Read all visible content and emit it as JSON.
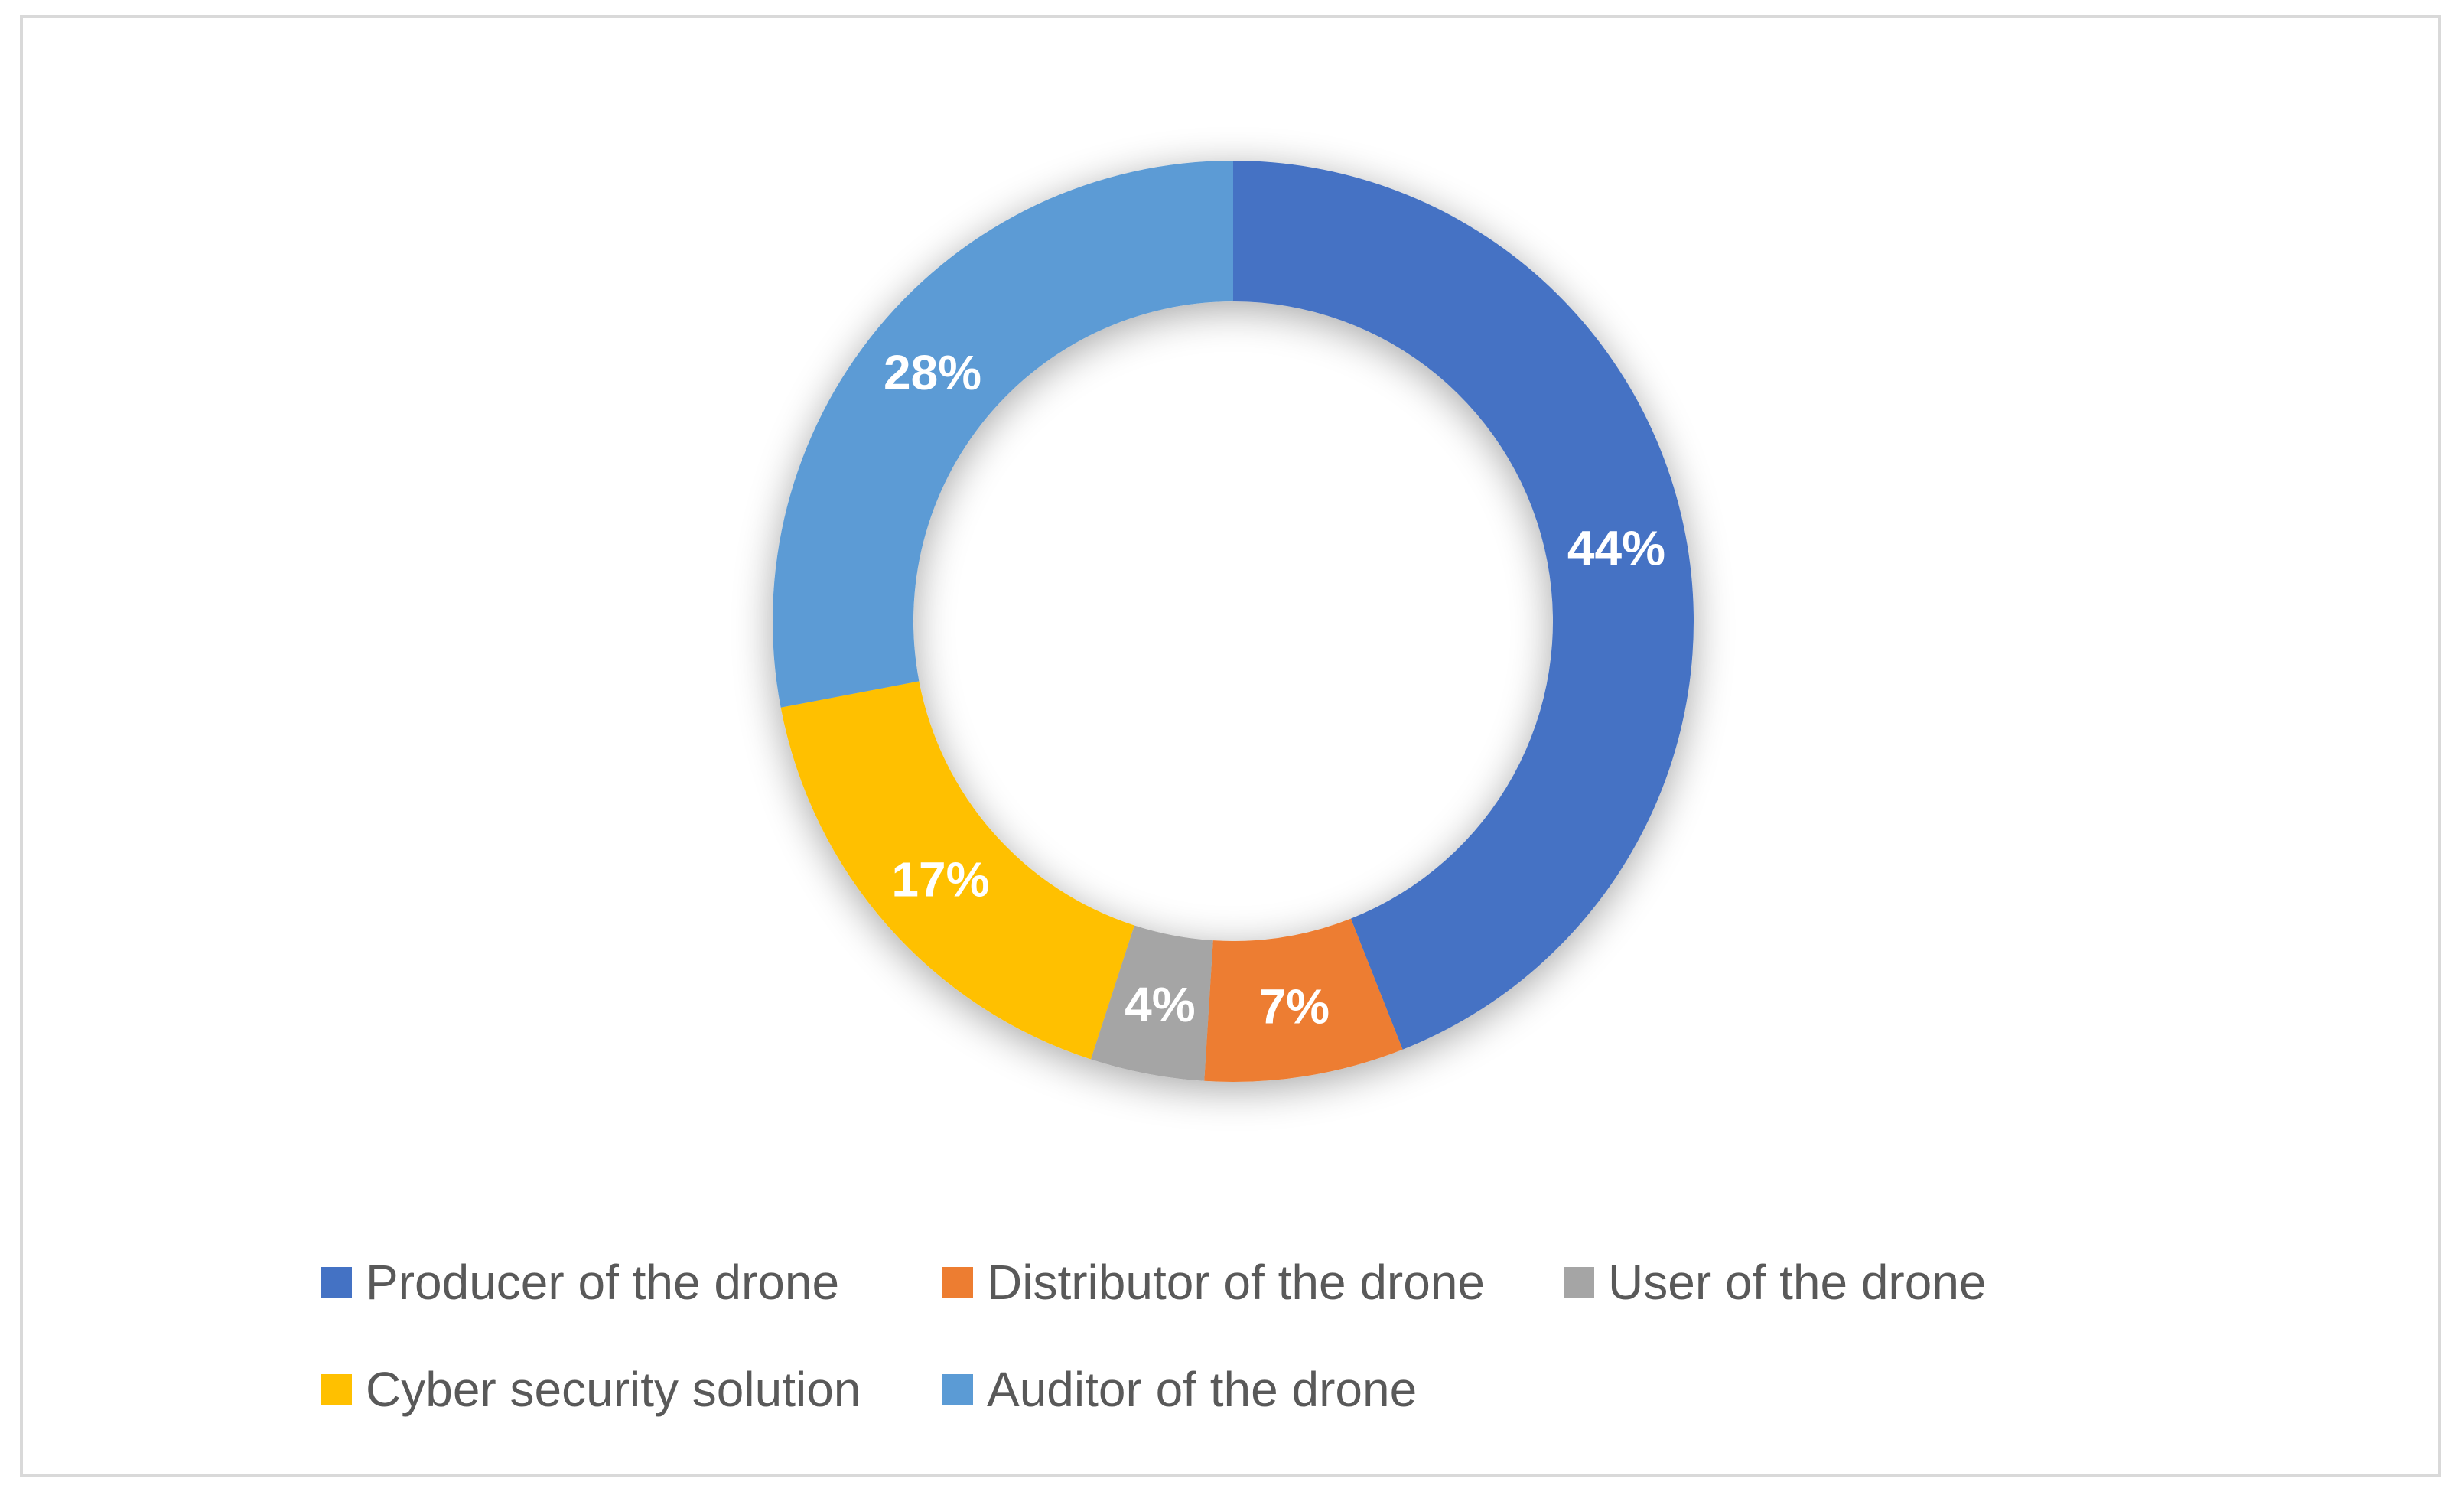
{
  "chart_data": {
    "type": "pie",
    "variant": "donut",
    "title": "",
    "categories": [
      "Producer of the drone",
      "Distributor of the drone",
      "User of the drone",
      "Cyber security solution",
      "Auditor of the drone"
    ],
    "values": [
      44,
      7,
      4,
      17,
      28
    ],
    "labels": [
      "44%",
      "7%",
      "4%",
      "17%",
      "28%"
    ],
    "colors": [
      "#4472c4",
      "#ed7d31",
      "#a5a5a5",
      "#ffc000",
      "#5b9bd5"
    ],
    "legend_position": "bottom"
  }
}
